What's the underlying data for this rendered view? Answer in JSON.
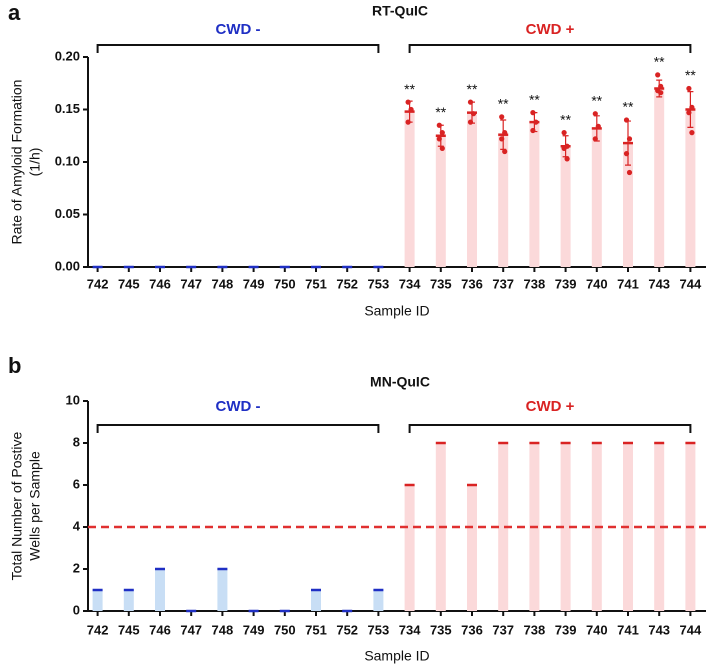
{
  "chart_data": [
    {
      "type": "bar",
      "panel": "a",
      "title": "RT-QuIC",
      "xlabel": "Sample ID",
      "ylabel": [
        "Rate of Amyloid Formation",
        "(1/h)"
      ],
      "categories": [
        "742",
        "745",
        "746",
        "747",
        "748",
        "749",
        "750",
        "751",
        "752",
        "753",
        "734",
        "735",
        "736",
        "737",
        "738",
        "739",
        "740",
        "741",
        "743",
        "744"
      ],
      "ylim": [
        0,
        0.2
      ],
      "yticks": [
        {
          "value": 0,
          "label": "0.00"
        },
        {
          "value": 0.05,
          "label": "0.05"
        },
        {
          "value": 0.1,
          "label": "0.10"
        },
        {
          "value": 0.15,
          "label": "0.15"
        },
        {
          "value": 0.2,
          "label": "0.20"
        }
      ],
      "series": [
        {
          "name": "CWD -",
          "color": "#1f2fc4",
          "bar_color": "#c8def5",
          "values": [
            0,
            0,
            0,
            0,
            0,
            0,
            0,
            0,
            0,
            0,
            null,
            null,
            null,
            null,
            null,
            null,
            null,
            null,
            null,
            null
          ]
        },
        {
          "name": "CWD +",
          "color": "#d92323",
          "bar_color": "#fbd9da",
          "values": [
            null,
            null,
            null,
            null,
            null,
            null,
            null,
            null,
            null,
            null,
            0.148,
            0.125,
            0.147,
            0.126,
            0.138,
            0.115,
            0.132,
            0.118,
            0.17,
            0.15
          ],
          "errors": [
            null,
            null,
            null,
            null,
            null,
            null,
            null,
            null,
            null,
            null,
            0.01,
            0.01,
            0.01,
            0.014,
            0.009,
            0.01,
            0.012,
            0.021,
            0.008,
            0.017
          ],
          "points": [
            null,
            null,
            null,
            null,
            null,
            null,
            null,
            null,
            null,
            null,
            [
              0.157,
              0.15,
              0.138
            ],
            [
              0.135,
              0.128,
              0.122,
              0.113
            ],
            [
              0.157,
              0.146,
              0.138
            ],
            [
              0.143,
              0.128,
              0.122,
              0.11
            ],
            [
              0.147,
              0.138,
              0.13
            ],
            [
              0.128,
              0.115,
              0.113,
              0.103
            ],
            [
              0.146,
              0.134,
              0.122
            ],
            [
              0.14,
              0.122,
              0.108,
              0.09
            ],
            [
              0.183,
              0.172,
              0.168,
              0.166
            ],
            [
              0.17,
              0.152,
              0.147,
              0.128
            ]
          ],
          "significance": [
            null,
            null,
            null,
            null,
            null,
            null,
            null,
            null,
            null,
            null,
            "**",
            "**",
            "**",
            "**",
            "**",
            "**",
            "**",
            "**",
            "**",
            "**"
          ]
        }
      ]
    },
    {
      "type": "bar",
      "panel": "b",
      "title": "MN-QuIC",
      "xlabel": "Sample ID",
      "ylabel": [
        "Total Number of Postive",
        "Wells per Sample"
      ],
      "categories": [
        "742",
        "745",
        "746",
        "747",
        "748",
        "749",
        "750",
        "751",
        "752",
        "753",
        "734",
        "735",
        "736",
        "737",
        "738",
        "739",
        "740",
        "741",
        "743",
        "744"
      ],
      "ylim": [
        0,
        10
      ],
      "yticks": [
        0,
        2,
        4,
        6,
        8,
        10
      ],
      "threshold": 4,
      "threshold_color": "#e03030",
      "series": [
        {
          "name": "CWD -",
          "color": "#1f2fc4",
          "bar_color": "#c8def5",
          "values": [
            1,
            1,
            2,
            0,
            2,
            0,
            0,
            1,
            0,
            1,
            null,
            null,
            null,
            null,
            null,
            null,
            null,
            null,
            null,
            null
          ]
        },
        {
          "name": "CWD +",
          "color": "#d92323",
          "bar_color": "#fbd9da",
          "values": [
            null,
            null,
            null,
            null,
            null,
            null,
            null,
            null,
            null,
            null,
            6,
            8,
            6,
            8,
            8,
            8,
            8,
            8,
            8,
            8
          ]
        }
      ]
    }
  ]
}
